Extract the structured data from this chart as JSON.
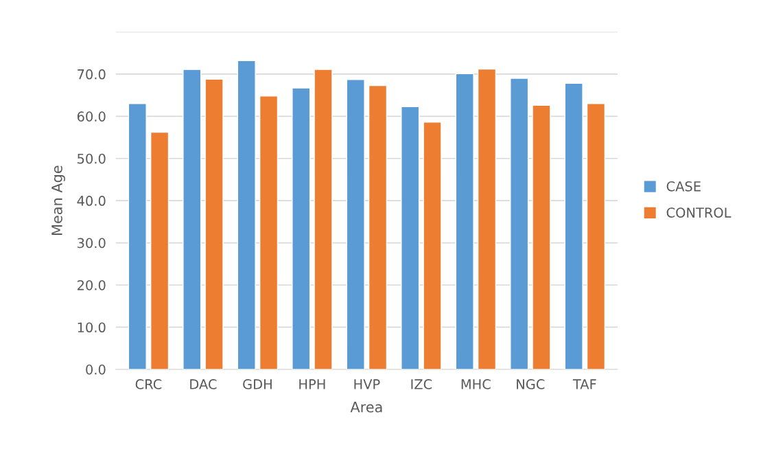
{
  "chart_data": {
    "type": "bar",
    "xlabel": "Area",
    "ylabel": "Mean Age",
    "categories": [
      "CRC",
      "DAC",
      "GDH",
      "HPH",
      "HVP",
      "IZC",
      "MHC",
      "NGC",
      "TAF"
    ],
    "series": [
      {
        "name": "CASE",
        "color": "#5b9bd5",
        "values": [
          63.0,
          71.1,
          73.2,
          66.7,
          68.7,
          62.3,
          70.1,
          69.0,
          67.8
        ]
      },
      {
        "name": "CONTROL",
        "color": "#ed7d31",
        "values": [
          56.2,
          68.8,
          64.8,
          71.1,
          67.3,
          58.6,
          71.2,
          62.6,
          63.0
        ]
      }
    ],
    "ylim": [
      0,
      80
    ],
    "yticks": [
      {
        "value": 0,
        "label": "0.0"
      },
      {
        "value": 10,
        "label": "10.0"
      },
      {
        "value": 20,
        "label": "20.0"
      },
      {
        "value": 30,
        "label": "30.0"
      },
      {
        "value": 40,
        "label": "40.0"
      },
      {
        "value": 50,
        "label": "50.0"
      },
      {
        "value": 60,
        "label": "60.0"
      },
      {
        "value": 70,
        "label": "70.0"
      },
      {
        "value": 80,
        "label": null
      }
    ],
    "grid": "y",
    "legend": "right"
  }
}
